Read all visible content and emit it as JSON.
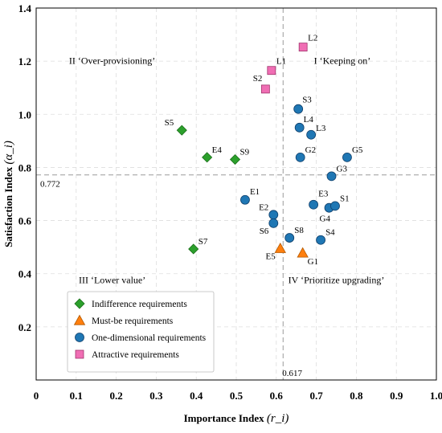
{
  "chart_data": {
    "type": "scatter",
    "title": "",
    "xlabel": "Importance Index",
    "xlabel_symbol": "(r_i)",
    "ylabel": "Satisfaction Index",
    "ylabel_symbol": "(α_i)",
    "xlim": [
      0,
      1.0
    ],
    "ylim": [
      0,
      1.4
    ],
    "xticks": [
      "0",
      "0.1",
      "0.2",
      "0.3",
      "0.4",
      "0.5",
      "0.6",
      "0.7",
      "0.8",
      "0.9",
      "1.0"
    ],
    "yticks": [
      "0.2",
      "0.4",
      "0.6",
      "0.8",
      "1.0",
      "1.2",
      "1.4"
    ],
    "grid": true,
    "reference_lines": {
      "x": 0.617,
      "x_label": "0.617",
      "y": 0.772,
      "y_label": "0.772"
    },
    "quadrant_labels": [
      {
        "text": "II ‘Over-provisioning’",
        "x": 0.19,
        "y": 1.19
      },
      {
        "text": "I ‘Keeping on’",
        "x": 0.765,
        "y": 1.19
      },
      {
        "text": "III ‘Lower value’",
        "x": 0.19,
        "y": 0.365
      },
      {
        "text": "IV ‘Prioritize upgrading’",
        "x": 0.75,
        "y": 0.365
      }
    ],
    "legend_position": "bottom-left",
    "series": [
      {
        "name": "Indifference requirements",
        "marker": "diamond",
        "color": "#2ca02c",
        "points": [
          {
            "label": "S5",
            "x": 0.364,
            "y": 0.94
          },
          {
            "label": "E4",
            "x": 0.427,
            "y": 0.838
          },
          {
            "label": "S9",
            "x": 0.497,
            "y": 0.83
          },
          {
            "label": "S7",
            "x": 0.393,
            "y": 0.493
          }
        ]
      },
      {
        "name": "Must-be requirements",
        "marker": "triangle",
        "color": "#ff7f0e",
        "points": [
          {
            "label": "E5",
            "x": 0.61,
            "y": 0.495
          },
          {
            "label": "G1",
            "x": 0.666,
            "y": 0.478
          }
        ]
      },
      {
        "name": "One-dimensional requirements",
        "marker": "circle",
        "color": "#1f77b4",
        "points": [
          {
            "label": "S3",
            "x": 0.655,
            "y": 1.02
          },
          {
            "label": "L4",
            "x": 0.658,
            "y": 0.95
          },
          {
            "label": "L3",
            "x": 0.687,
            "y": 0.923
          },
          {
            "label": "G2",
            "x": 0.66,
            "y": 0.838
          },
          {
            "label": "G5",
            "x": 0.777,
            "y": 0.838
          },
          {
            "label": "G3",
            "x": 0.738,
            "y": 0.767
          },
          {
            "label": "E1",
            "x": 0.522,
            "y": 0.678
          },
          {
            "label": "E2",
            "x": 0.593,
            "y": 0.622
          },
          {
            "label": "S6",
            "x": 0.593,
            "y": 0.59
          },
          {
            "label": "E3",
            "x": 0.693,
            "y": 0.66
          },
          {
            "label": "G4",
            "x": 0.732,
            "y": 0.648
          },
          {
            "label": "S1",
            "x": 0.747,
            "y": 0.655
          },
          {
            "label": "S8",
            "x": 0.633,
            "y": 0.535
          },
          {
            "label": "S4",
            "x": 0.711,
            "y": 0.527
          }
        ]
      },
      {
        "name": "Attractive requirements",
        "marker": "square",
        "color": "#f06eb4",
        "points": [
          {
            "label": "L2",
            "x": 0.667,
            "y": 1.253
          },
          {
            "label": "L1",
            "x": 0.588,
            "y": 1.165
          },
          {
            "label": "S2",
            "x": 0.573,
            "y": 1.095
          }
        ]
      }
    ]
  }
}
